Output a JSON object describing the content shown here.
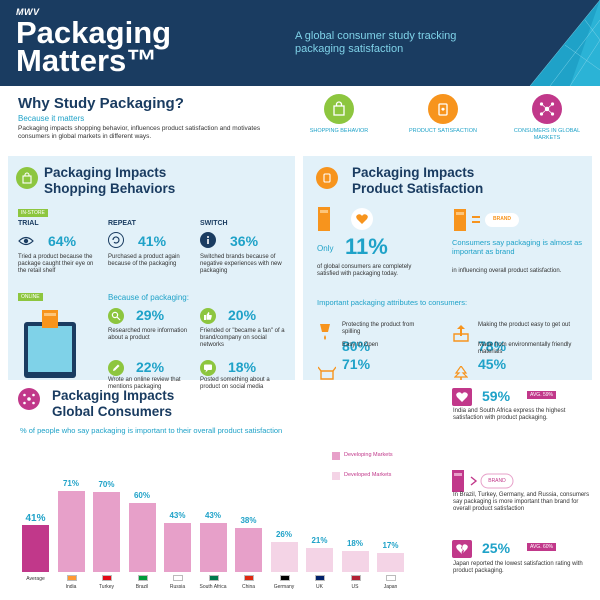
{
  "header": {
    "logo": "MWV",
    "title_line1": "Packaging",
    "title_line2": "Matters™",
    "tagline": "A global consumer study tracking packaging satisfaction"
  },
  "why": {
    "title": "Why Study Packaging?",
    "subtitle": "Because it matters",
    "body": "Packaging impacts shopping behavior, influences product satisfaction and motivates consumers in global markets in different ways.",
    "categories": [
      {
        "label": "SHOPPING BEHAVIOR",
        "color": "#8dc63f"
      },
      {
        "label": "PRODUCT SATISFACTION",
        "color": "#f7941d"
      },
      {
        "label": "CONSUMERS IN GLOBAL MARKETS",
        "color": "#c1388a"
      }
    ]
  },
  "shopping": {
    "title_line1": "Packaging Impacts",
    "title_line2": "Shopping Behaviors",
    "instore_tag": "IN-STORE",
    "online_tag": "ONLINE",
    "trial": {
      "head": "TRIAL",
      "value": "64%",
      "desc": "Tried a product because the package caught their eye on the retail shelf"
    },
    "repeat": {
      "head": "REPEAT",
      "value": "41%",
      "desc": "Purchased a product again because of the packaging"
    },
    "switch": {
      "head": "SWITCH",
      "value": "36%",
      "desc": "Switched brands because of negative experiences with new packaging"
    },
    "because": "Because of packaging:",
    "online_stats": [
      {
        "value": "29%",
        "desc": "Researched more information about a product"
      },
      {
        "value": "20%",
        "desc": "Friended or \"became a fan\" of a brand/company on social networks"
      },
      {
        "value": "22%",
        "desc": "Wrote an online review that mentions packaging"
      },
      {
        "value": "18%",
        "desc": "Posted something about a product on social media"
      }
    ]
  },
  "satisfaction": {
    "title_line1": "Packaging Impacts",
    "title_line2": "Product Satisfaction",
    "only": "Only",
    "only_value": "11%",
    "only_desc": "of global consumers are completely satisfied with packaging today.",
    "brand_label": "BRAND",
    "brand_head": "Consumers say packaging is almost as important as brand",
    "brand_desc": "in influencing overall product satisfaction.",
    "attributes_head": "Important packaging attributes to consumers:",
    "attributes": [
      {
        "label": "Protecting the product from spilling",
        "value": "80%"
      },
      {
        "label": "Making the product easy to get out",
        "value": "78%"
      },
      {
        "label": "Easy to Open",
        "value": "71%"
      },
      {
        "label": "Made from environmentally friendly materials",
        "value": "45%"
      }
    ]
  },
  "global": {
    "title_line1": "Packaging Impacts",
    "title_line2": "Global Consumers",
    "subtitle": "% of people who say packaging is important to their overall product satisfaction",
    "legend": [
      {
        "label": "Developing Markets",
        "color": "#e7a0c9"
      },
      {
        "label": "Developed Markets",
        "color": "#f4d4e6"
      }
    ],
    "stat1": {
      "value": "59%",
      "avg": "AVG. 59%",
      "desc": "India and South Africa express the highest satisfaction with product packaging."
    },
    "stat2": {
      "brand_label": "BRAND",
      "desc": "In Brazil, Turkey, Germany, and Russia, consumers say packaging is more important than brand for overall product satisfaction"
    },
    "stat3": {
      "value": "25%",
      "avg": "AVG. 60%",
      "desc": "Japan reported the lowest satisfaction rating with product packaging."
    }
  },
  "chart_data": {
    "type": "bar",
    "title": "% of people who say packaging is important to their overall product satisfaction",
    "categories": [
      "Average",
      "India",
      "Turkey",
      "Brazil",
      "Russia",
      "South Africa",
      "China",
      "Germany",
      "UK",
      "US",
      "Japan"
    ],
    "values": [
      41,
      71,
      70,
      60,
      43,
      43,
      38,
      26,
      21,
      18,
      17
    ],
    "labels": [
      "41%",
      "71%",
      "70%",
      "60%",
      "43%",
      "43%",
      "38%",
      "26%",
      "21%",
      "18%",
      "17%"
    ],
    "groups": [
      "average",
      "developing",
      "developing",
      "developing",
      "developing",
      "developing",
      "developing",
      "developed",
      "developed",
      "developed",
      "developed"
    ],
    "colors": {
      "average": "#c1388a",
      "developing": "#e7a0c9",
      "developed": "#f4d4e6"
    },
    "ylim": [
      0,
      75
    ],
    "legend_position": "top-right"
  }
}
